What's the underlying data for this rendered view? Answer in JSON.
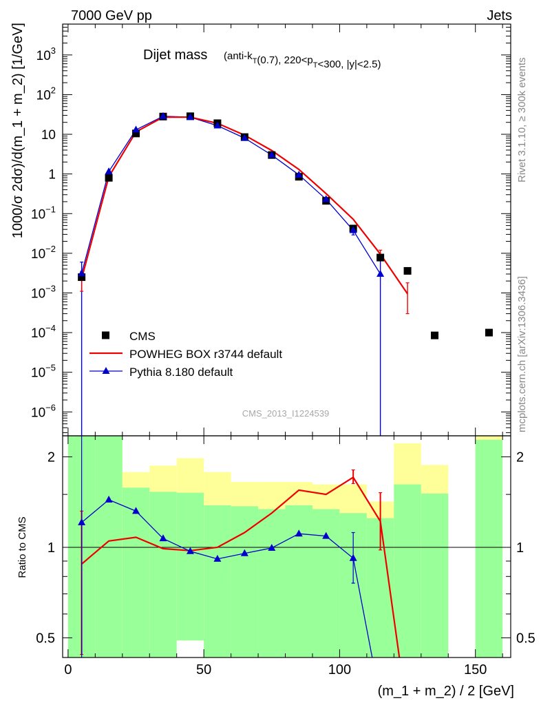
{
  "header": {
    "left": "7000 GeV pp",
    "right": "Jets"
  },
  "side_labels": {
    "rivet": "Rivet 3.1.10, ≥ 300k events",
    "mcplots": "mcplots.cern.ch [arXiv:1306.3436]"
  },
  "chart_data": [
    {
      "type": "line",
      "panel": "main",
      "title": "Dijet mass",
      "subtitle": "(anti-k_T(0.7), 220<p_T<300, |y|<2.5)",
      "xlabel": "(m_1 + m_2) / 2 [GeV]",
      "ylabel": "1000/σ 2dσ)/d(m_1 + m_2) [1/GeV]",
      "watermark": "CMS_2013_I1224539",
      "yscale": "log",
      "xlim": [
        -2,
        163
      ],
      "ylim": [
        2.5e-07,
        6000
      ],
      "x_ticks": [
        0,
        50,
        100,
        150
      ],
      "y_ticks": [
        {
          "value": 1e-06,
          "label": "10^-6"
        },
        {
          "value": 1e-05,
          "label": "10^-5"
        },
        {
          "value": 0.0001,
          "label": "10^-4"
        },
        {
          "value": 0.001,
          "label": "10^-3"
        },
        {
          "value": 0.01,
          "label": "10^-2"
        },
        {
          "value": 0.1,
          "label": "10^-1"
        },
        {
          "value": 1,
          "label": "1"
        },
        {
          "value": 10,
          "label": "10"
        },
        {
          "value": 100,
          "label": "10^2"
        },
        {
          "value": 1000,
          "label": "10^3"
        }
      ],
      "legend_position": "bottom-left",
      "series": [
        {
          "name": "CMS",
          "style": "markers",
          "marker": "square",
          "color": "#000000",
          "points": [
            {
              "x": 5,
              "y": 0.0025
            },
            {
              "x": 15,
              "y": 0.8
            },
            {
              "x": 25,
              "y": 10.5
            },
            {
              "x": 35,
              "y": 28
            },
            {
              "x": 45,
              "y": 28.5
            },
            {
              "x": 55,
              "y": 19
            },
            {
              "x": 65,
              "y": 8.5
            },
            {
              "x": 75,
              "y": 3.0
            },
            {
              "x": 85,
              "y": 0.85
            },
            {
              "x": 95,
              "y": 0.21
            },
            {
              "x": 105,
              "y": 0.042
            },
            {
              "x": 115,
              "y": 0.0078
            },
            {
              "x": 125,
              "y": 0.0036
            },
            {
              "x": 135,
              "y": 8.5e-05
            },
            {
              "x": 155,
              "y": 0.0001
            }
          ]
        },
        {
          "name": "POWHEG BOX r3744 default",
          "style": "line",
          "color": "#ee0000",
          "points": [
            {
              "x": 5,
              "y": 0.0023,
              "err_lo": 0.0011,
              "err_hi": 0.0035
            },
            {
              "x": 15,
              "y": 0.85
            },
            {
              "x": 25,
              "y": 11.5
            },
            {
              "x": 35,
              "y": 27
            },
            {
              "x": 45,
              "y": 27
            },
            {
              "x": 55,
              "y": 19
            },
            {
              "x": 65,
              "y": 9.5
            },
            {
              "x": 75,
              "y": 3.9
            },
            {
              "x": 85,
              "y": 1.3
            },
            {
              "x": 95,
              "y": 0.32
            },
            {
              "x": 105,
              "y": 0.072
            },
            {
              "x": 115,
              "y": 0.0095,
              "err_lo": 0.007,
              "err_hi": 0.012
            },
            {
              "x": 125,
              "y": 0.00095,
              "err_lo": 0.0003,
              "err_hi": 0.0018
            }
          ]
        },
        {
          "name": "Pythia 8.180 default",
          "style": "line",
          "marker": "triangle",
          "color": "#0000cc",
          "points": [
            {
              "x": 5,
              "y": 0.0031,
              "err_lo": 2.5e-07,
              "err_hi": 0.006
            },
            {
              "x": 15,
              "y": 1.15
            },
            {
              "x": 25,
              "y": 13
            },
            {
              "x": 35,
              "y": 28.5
            },
            {
              "x": 45,
              "y": 27
            },
            {
              "x": 55,
              "y": 16.5
            },
            {
              "x": 65,
              "y": 8.0
            },
            {
              "x": 75,
              "y": 3.0
            },
            {
              "x": 85,
              "y": 0.95
            },
            {
              "x": 95,
              "y": 0.23
            },
            {
              "x": 105,
              "y": 0.038,
              "err_lo": 0.029,
              "err_hi": 0.047
            },
            {
              "x": 115,
              "y": 0.003,
              "err_lo": 2.5e-07,
              "err_hi": 0.009
            }
          ]
        }
      ]
    },
    {
      "type": "line",
      "panel": "ratio",
      "xlabel": "(m_1 + m_2) / 2 [GeV]",
      "ylabel": "Ratio to CMS",
      "yscale": "log",
      "xlim": [
        -2,
        163
      ],
      "ylim": [
        0.43,
        2.35
      ],
      "y_ticks": [
        {
          "value": 0.5,
          "label": "0.5"
        },
        {
          "value": 1,
          "label": "1"
        },
        {
          "value": 2,
          "label": "2"
        }
      ],
      "bands": {
        "bins": [
          [
            0,
            10
          ],
          [
            10,
            20
          ],
          [
            20,
            30
          ],
          [
            30,
            40
          ],
          [
            40,
            50
          ],
          [
            50,
            60
          ],
          [
            60,
            70
          ],
          [
            70,
            80
          ],
          [
            80,
            90
          ],
          [
            90,
            100
          ],
          [
            100,
            110
          ],
          [
            110,
            120
          ],
          [
            120,
            130
          ],
          [
            130,
            140
          ],
          [
            150,
            160
          ]
        ],
        "green": [
          [
            0.43,
            2.35
          ],
          [
            0.43,
            2.35
          ],
          [
            0.43,
            1.58
          ],
          [
            0.43,
            1.53
          ],
          [
            0.49,
            1.52
          ],
          [
            0.43,
            1.38
          ],
          [
            0.43,
            1.37
          ],
          [
            0.43,
            1.34
          ],
          [
            0.43,
            1.38
          ],
          [
            0.43,
            1.34
          ],
          [
            0.43,
            1.3
          ],
          [
            0.43,
            1.25
          ],
          [
            0.43,
            1.62
          ],
          [
            0.43,
            1.51
          ],
          [
            0.43,
            2.28
          ]
        ],
        "yellow": [
          [
            0.43,
            2.35
          ],
          [
            0.43,
            2.35
          ],
          [
            0.71,
            1.78
          ],
          [
            0.65,
            1.87
          ],
          [
            0.49,
            1.98
          ],
          [
            0.43,
            1.78
          ],
          [
            0.81,
            1.65
          ],
          [
            0.8,
            1.65
          ],
          [
            0.81,
            1.65
          ],
          [
            0.76,
            1.62
          ],
          [
            0.76,
            1.62
          ],
          [
            0.43,
            1.42
          ],
          [
            0.43,
            2.22
          ],
          [
            0.43,
            1.88
          ],
          [
            0.43,
            2.35
          ]
        ]
      },
      "series": [
        {
          "name": "POWHEG BOX r3744 default",
          "color": "#ee0000",
          "points": [
            {
              "x": 5,
              "y": 0.88,
              "err_lo": 0.44,
              "err_hi": 1.32
            },
            {
              "x": 15,
              "y": 1.05
            },
            {
              "x": 25,
              "y": 1.08
            },
            {
              "x": 35,
              "y": 0.99
            },
            {
              "x": 45,
              "y": 0.975
            },
            {
              "x": 55,
              "y": 1.0
            },
            {
              "x": 65,
              "y": 1.12
            },
            {
              "x": 75,
              "y": 1.3
            },
            {
              "x": 85,
              "y": 1.55
            },
            {
              "x": 95,
              "y": 1.5
            },
            {
              "x": 105,
              "y": 1.71,
              "err_lo": 1.63,
              "err_hi": 1.81
            },
            {
              "x": 115,
              "y": 1.22,
              "err_lo": 0.98,
              "err_hi": 1.52
            },
            {
              "x": 122,
              "y": 0.43
            }
          ]
        },
        {
          "name": "Pythia 8.180 default",
          "color": "#0000cc",
          "points": [
            {
              "x": 5,
              "y": 1.21,
              "err_lo": 0.43,
              "err_hi": 2.35
            },
            {
              "x": 15,
              "y": 1.44
            },
            {
              "x": 25,
              "y": 1.32
            },
            {
              "x": 35,
              "y": 1.07
            },
            {
              "x": 45,
              "y": 0.97
            },
            {
              "x": 55,
              "y": 0.915
            },
            {
              "x": 65,
              "y": 0.955
            },
            {
              "x": 75,
              "y": 0.995
            },
            {
              "x": 85,
              "y": 1.11
            },
            {
              "x": 95,
              "y": 1.09
            },
            {
              "x": 105,
              "y": 0.92,
              "err_lo": 0.76,
              "err_hi": 1.12
            },
            {
              "x": 112,
              "y": 0.43
            }
          ]
        }
      ]
    }
  ]
}
